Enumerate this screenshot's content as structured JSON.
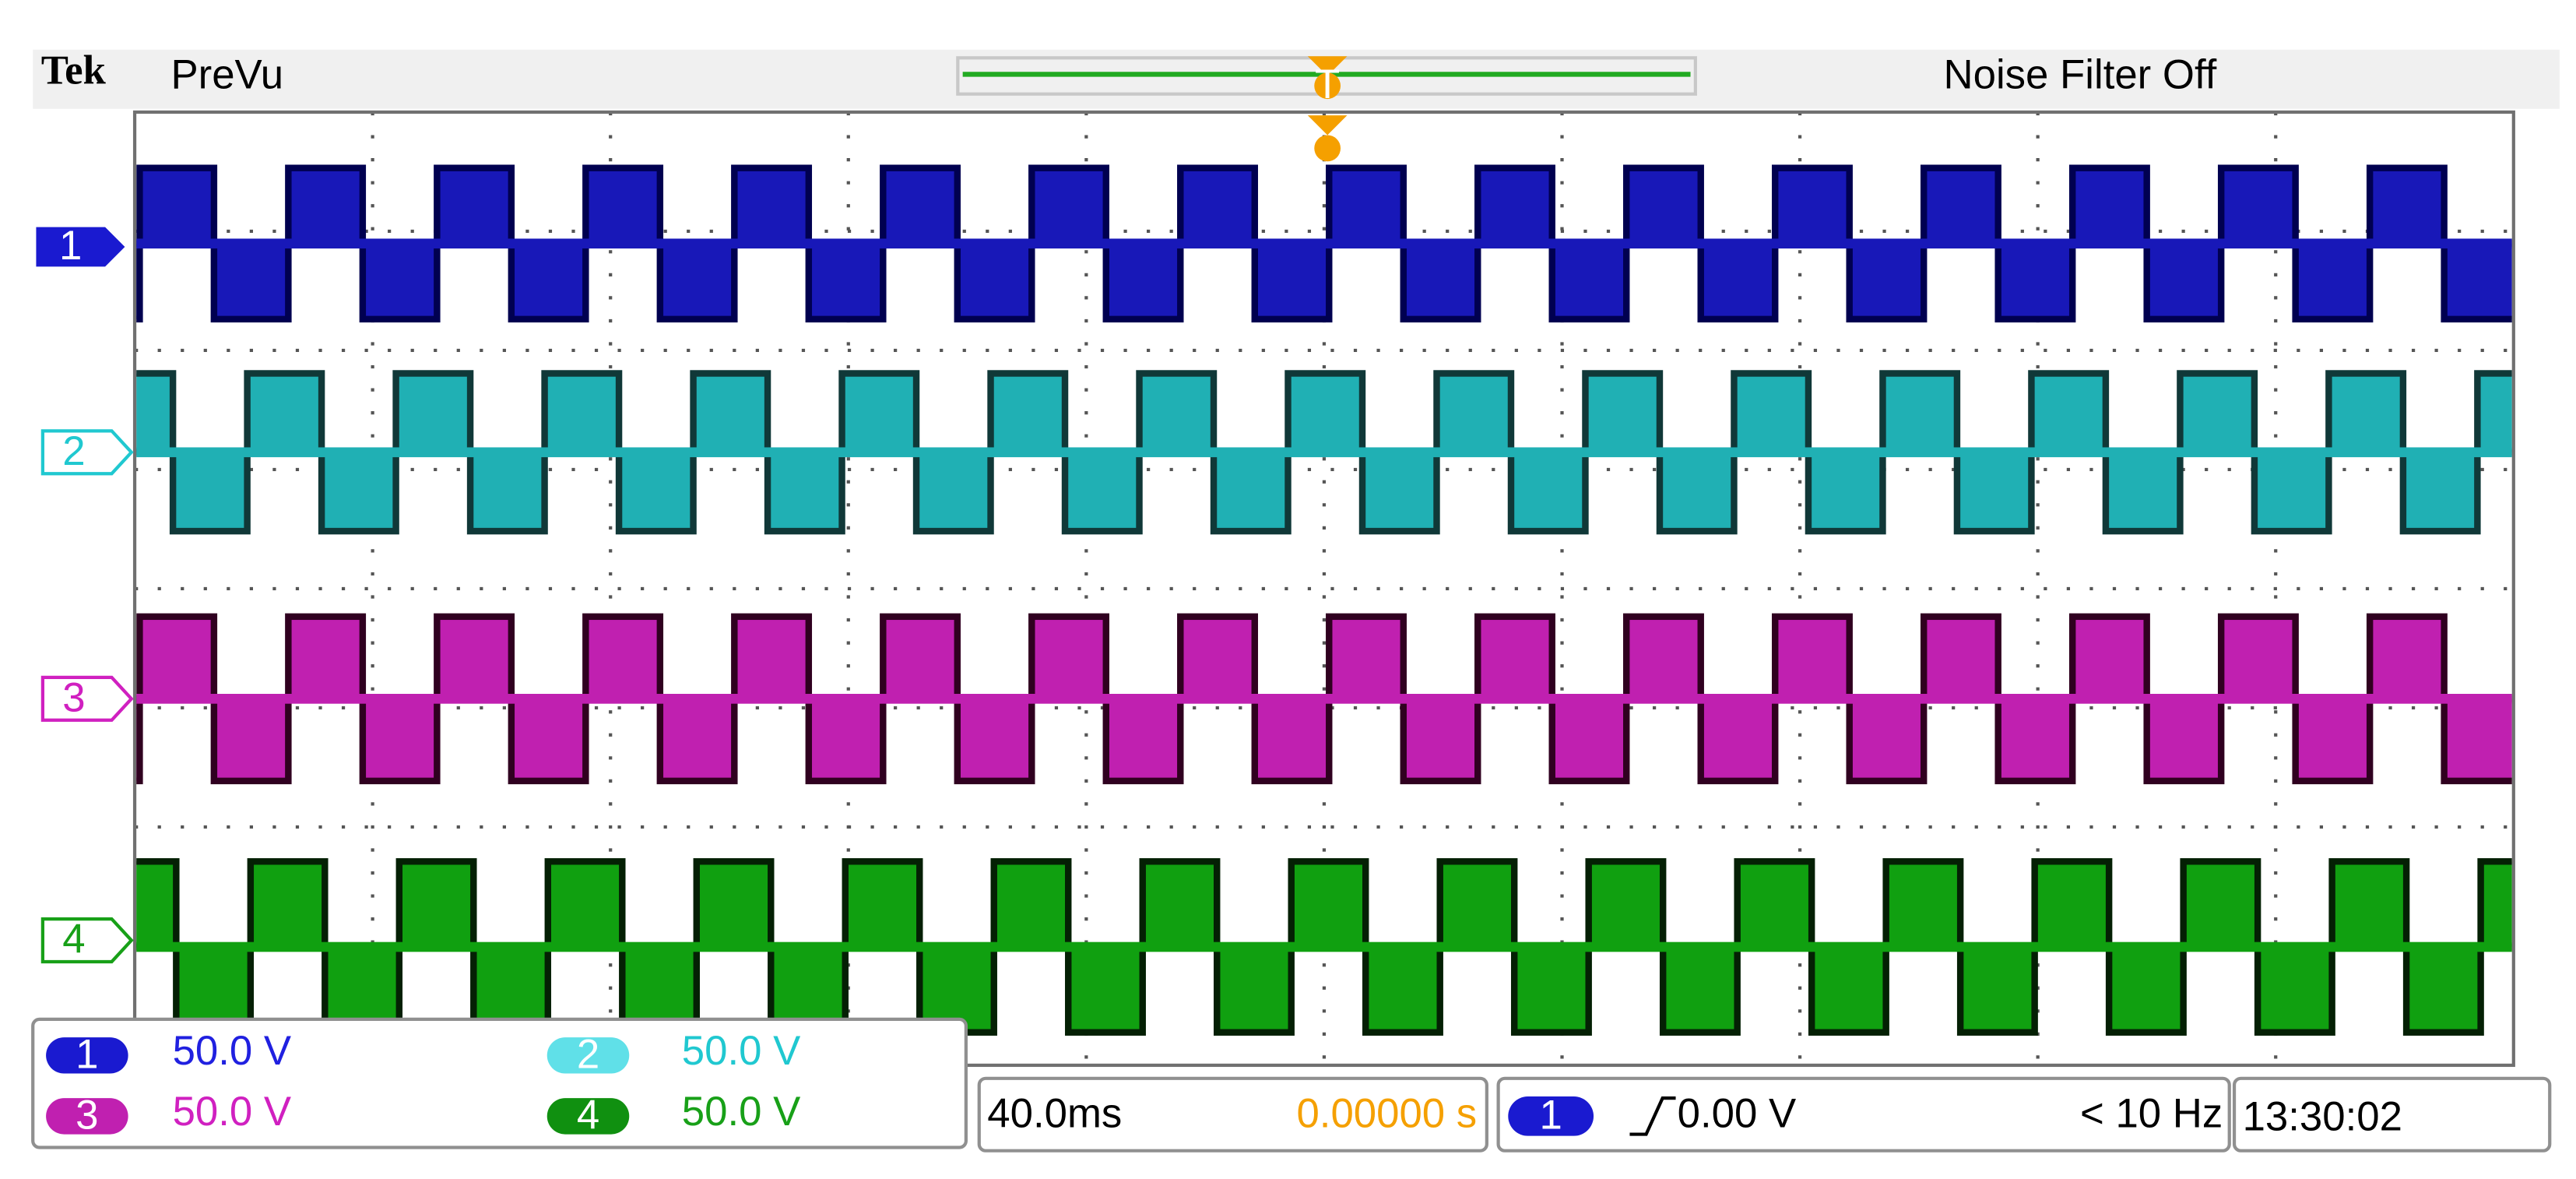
{
  "header": {
    "brand": "Tek",
    "mode": "PreVu",
    "noise_filter": "Noise Filter Off",
    "trigger_marker": "T"
  },
  "channels": [
    {
      "label": "1",
      "scale": "50.0 V"
    },
    {
      "label": "2",
      "scale": "50.0 V"
    },
    {
      "label": "3",
      "scale": "50.0 V"
    },
    {
      "label": "4",
      "scale": "50.0 V"
    }
  ],
  "timebase": {
    "scale": "40.0ms",
    "position": "0.00000 s"
  },
  "trigger": {
    "source": "1",
    "level": "0.00 V",
    "frequency": "< 10 Hz"
  },
  "clock": "13:30:02"
}
